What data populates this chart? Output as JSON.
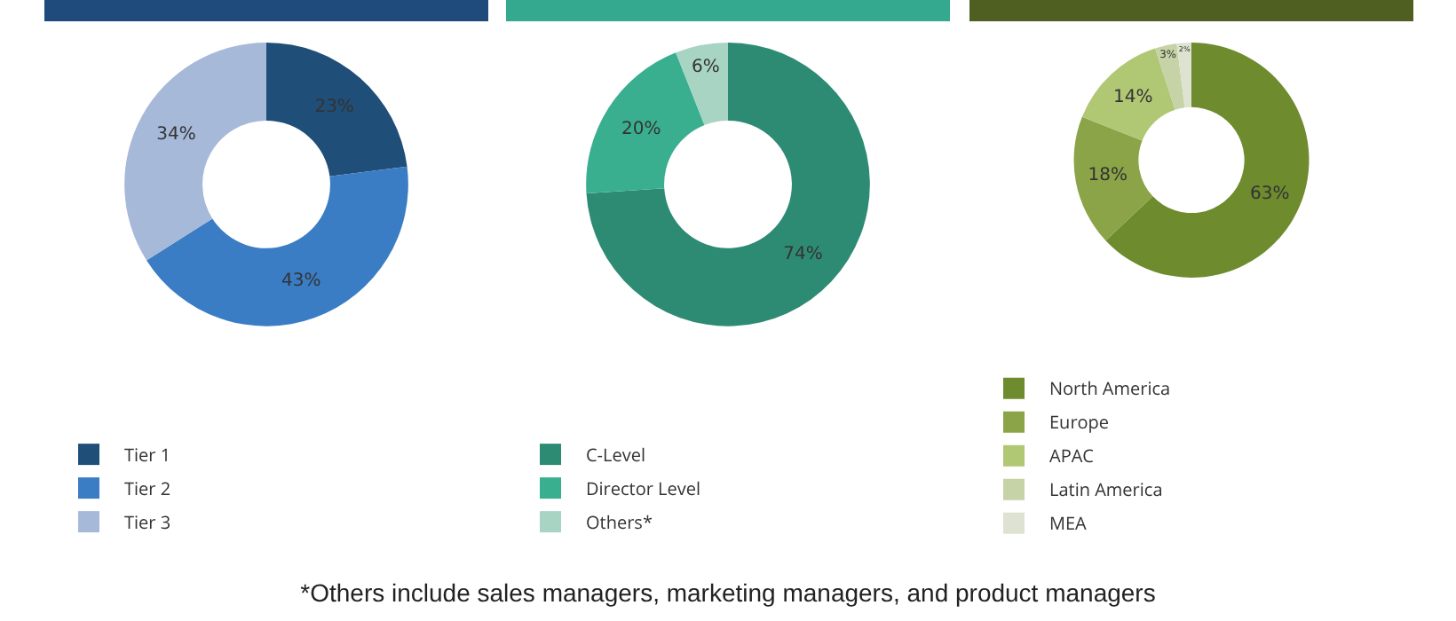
{
  "chart_data": [
    {
      "type": "donut",
      "categories": [
        "Tier 1",
        "Tier 2",
        "Tier 3"
      ],
      "values": [
        23,
        43,
        34
      ],
      "colors": [
        "#1f4e79",
        "#3a7dc4",
        "#a7b9d9"
      ],
      "value_labels": [
        "23%",
        "43%",
        "34%"
      ],
      "legend": "bottom"
    },
    {
      "type": "donut",
      "categories": [
        "C-Level",
        "Director Level",
        "Others*"
      ],
      "values": [
        74,
        20,
        6
      ],
      "colors": [
        "#2e8b73",
        "#3aaf8f",
        "#a8d4c4"
      ],
      "value_labels": [
        "74%",
        "20%",
        "6%"
      ],
      "legend": "bottom",
      "annotations": [
        "*Others include sales managers, marketing managers, and product managers"
      ]
    },
    {
      "type": "donut",
      "categories": [
        "North America",
        "Europe",
        "APAC",
        "Latin America",
        "MEA"
      ],
      "values": [
        63,
        18,
        14,
        3,
        2
      ],
      "colors": [
        "#6e8b2e",
        "#8aa447",
        "#b0c774",
        "#c6d3a6",
        "#dde3d0"
      ],
      "value_labels": [
        "63%",
        "18%",
        "14%",
        "3%",
        "2%"
      ],
      "legend": "bottom"
    }
  ]
}
